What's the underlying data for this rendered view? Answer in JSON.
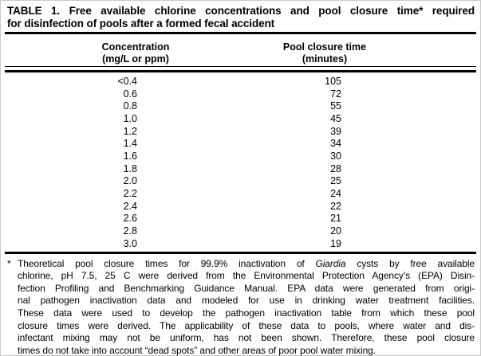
{
  "page": {
    "title_lines": [
      "TABLE 1. Free available chlorine concentrations and pool closure time* required",
      "for disinfection of pools after a formed fecal accident"
    ]
  },
  "table": {
    "columns": [
      {
        "label_line1": "Concentration",
        "label_line2": "(mg/L or ppm)"
      },
      {
        "label_line1": "Pool closure time",
        "label_line2": "(minutes)"
      }
    ],
    "rows": [
      {
        "concentration": "<0.4",
        "closure_time": "105"
      },
      {
        "concentration": "0.6",
        "closure_time": "72"
      },
      {
        "concentration": "0.8",
        "closure_time": "55"
      },
      {
        "concentration": "1.0",
        "closure_time": "45"
      },
      {
        "concentration": "1.2",
        "closure_time": "39"
      },
      {
        "concentration": "1.4",
        "closure_time": "34"
      },
      {
        "concentration": "1.6",
        "closure_time": "30"
      },
      {
        "concentration": "1.8",
        "closure_time": "28"
      },
      {
        "concentration": "2.0",
        "closure_time": "25"
      },
      {
        "concentration": "2.2",
        "closure_time": "24"
      },
      {
        "concentration": "2.4",
        "closure_time": "22"
      },
      {
        "concentration": "2.6",
        "closure_time": "21"
      },
      {
        "concentration": "2.8",
        "closure_time": "20"
      },
      {
        "concentration": "3.0",
        "closure_time": "19"
      }
    ]
  },
  "footnote": {
    "marker": "*",
    "line1_pre": "Theoretical pool closure times for 99.9% inactivation of ",
    "line1_italic": "Giardia",
    "line1_post": " cysts by free available",
    "rest": [
      "chlorine, pH 7.5, 25 C were derived from the Environmental Protection Agency’s (EPA) Disin-",
      "fection Profiling and Benchmarking Guidance Manual. EPA data were generated from origi-",
      "nal pathogen inactivation data and modeled for use in drinking water treatment facilities.",
      "These data were used to develop the pathogen inactivation table from which these pool",
      "closure times were derived. The applicability of these data to pools, where water and dis-",
      "infectant mixing may not be uniform, has not been shown. Therefore, these pool closure",
      "times do not take into account “dead spots” and other areas of poor pool water mixing."
    ]
  },
  "colors": {
    "background": "#ffffff",
    "text": "#000000",
    "rule": "#000000"
  }
}
